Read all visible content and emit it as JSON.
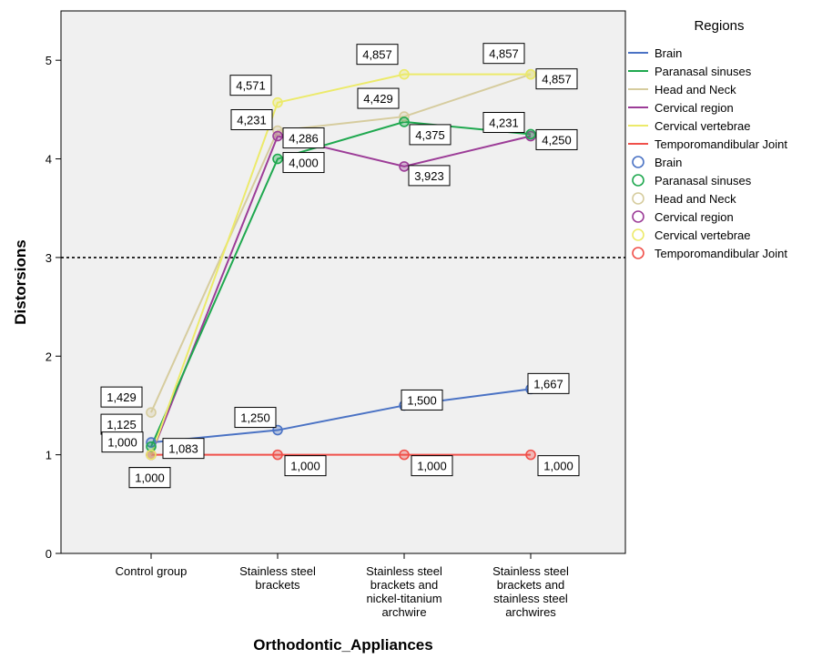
{
  "chart_data": {
    "type": "line",
    "title": "",
    "xlabel": "Orthodontic_Appliances",
    "ylabel": "Distorsions",
    "categories": [
      [
        "Control group"
      ],
      [
        "Stainless steel",
        "brackets"
      ],
      [
        "Stainless steel",
        "brackets and",
        "nickel-titanium",
        "archwire"
      ],
      [
        "Stainless steel",
        "brackets and",
        "stainless steel",
        "archwires"
      ]
    ],
    "ylim": [
      0,
      5.5
    ],
    "yticks": [
      0,
      1,
      2,
      3,
      4,
      5
    ],
    "reference_line": {
      "y": 3,
      "style": "dotted"
    },
    "grid": false,
    "legend": {
      "title": "Regions",
      "placement": "right"
    },
    "series": [
      {
        "name": "Brain",
        "color": "#4a72c4",
        "values": [
          1.125,
          1.25,
          1.5,
          1.667
        ],
        "labels": [
          "1,125",
          "1,250",
          "1,500",
          "1,667"
        ]
      },
      {
        "name": "Paranasal sinuses",
        "color": "#1fa84f",
        "values": [
          1.083,
          4.0,
          4.375,
          4.25
        ],
        "labels": [
          "1,083",
          "4,000",
          "4,375",
          "4,250"
        ]
      },
      {
        "name": "Head and Neck",
        "color": "#d6cc9e",
        "values": [
          1.429,
          4.286,
          4.429,
          4.857
        ],
        "labels": [
          "1,429",
          "4,286",
          "4,429",
          "4,857"
        ]
      },
      {
        "name": "Cervical region",
        "color": "#9c3c97",
        "values": [
          1.0,
          4.231,
          3.923,
          4.231
        ],
        "labels": [
          "1,000",
          "4,231",
          "3,923",
          "4,231"
        ]
      },
      {
        "name": "Cervical vertebrae",
        "color": "#ecea6a",
        "values": [
          1.0,
          4.571,
          4.857,
          4.857
        ],
        "labels": [
          "1,000",
          "4,571",
          "4,857",
          "4,857"
        ]
      },
      {
        "name": "Temporomandibular Joint",
        "color": "#f0504a",
        "values": [
          1.0,
          1.0,
          1.0,
          1.0
        ],
        "labels": [
          "1,000",
          "1,000",
          "1,000",
          "1,000"
        ]
      }
    ]
  }
}
